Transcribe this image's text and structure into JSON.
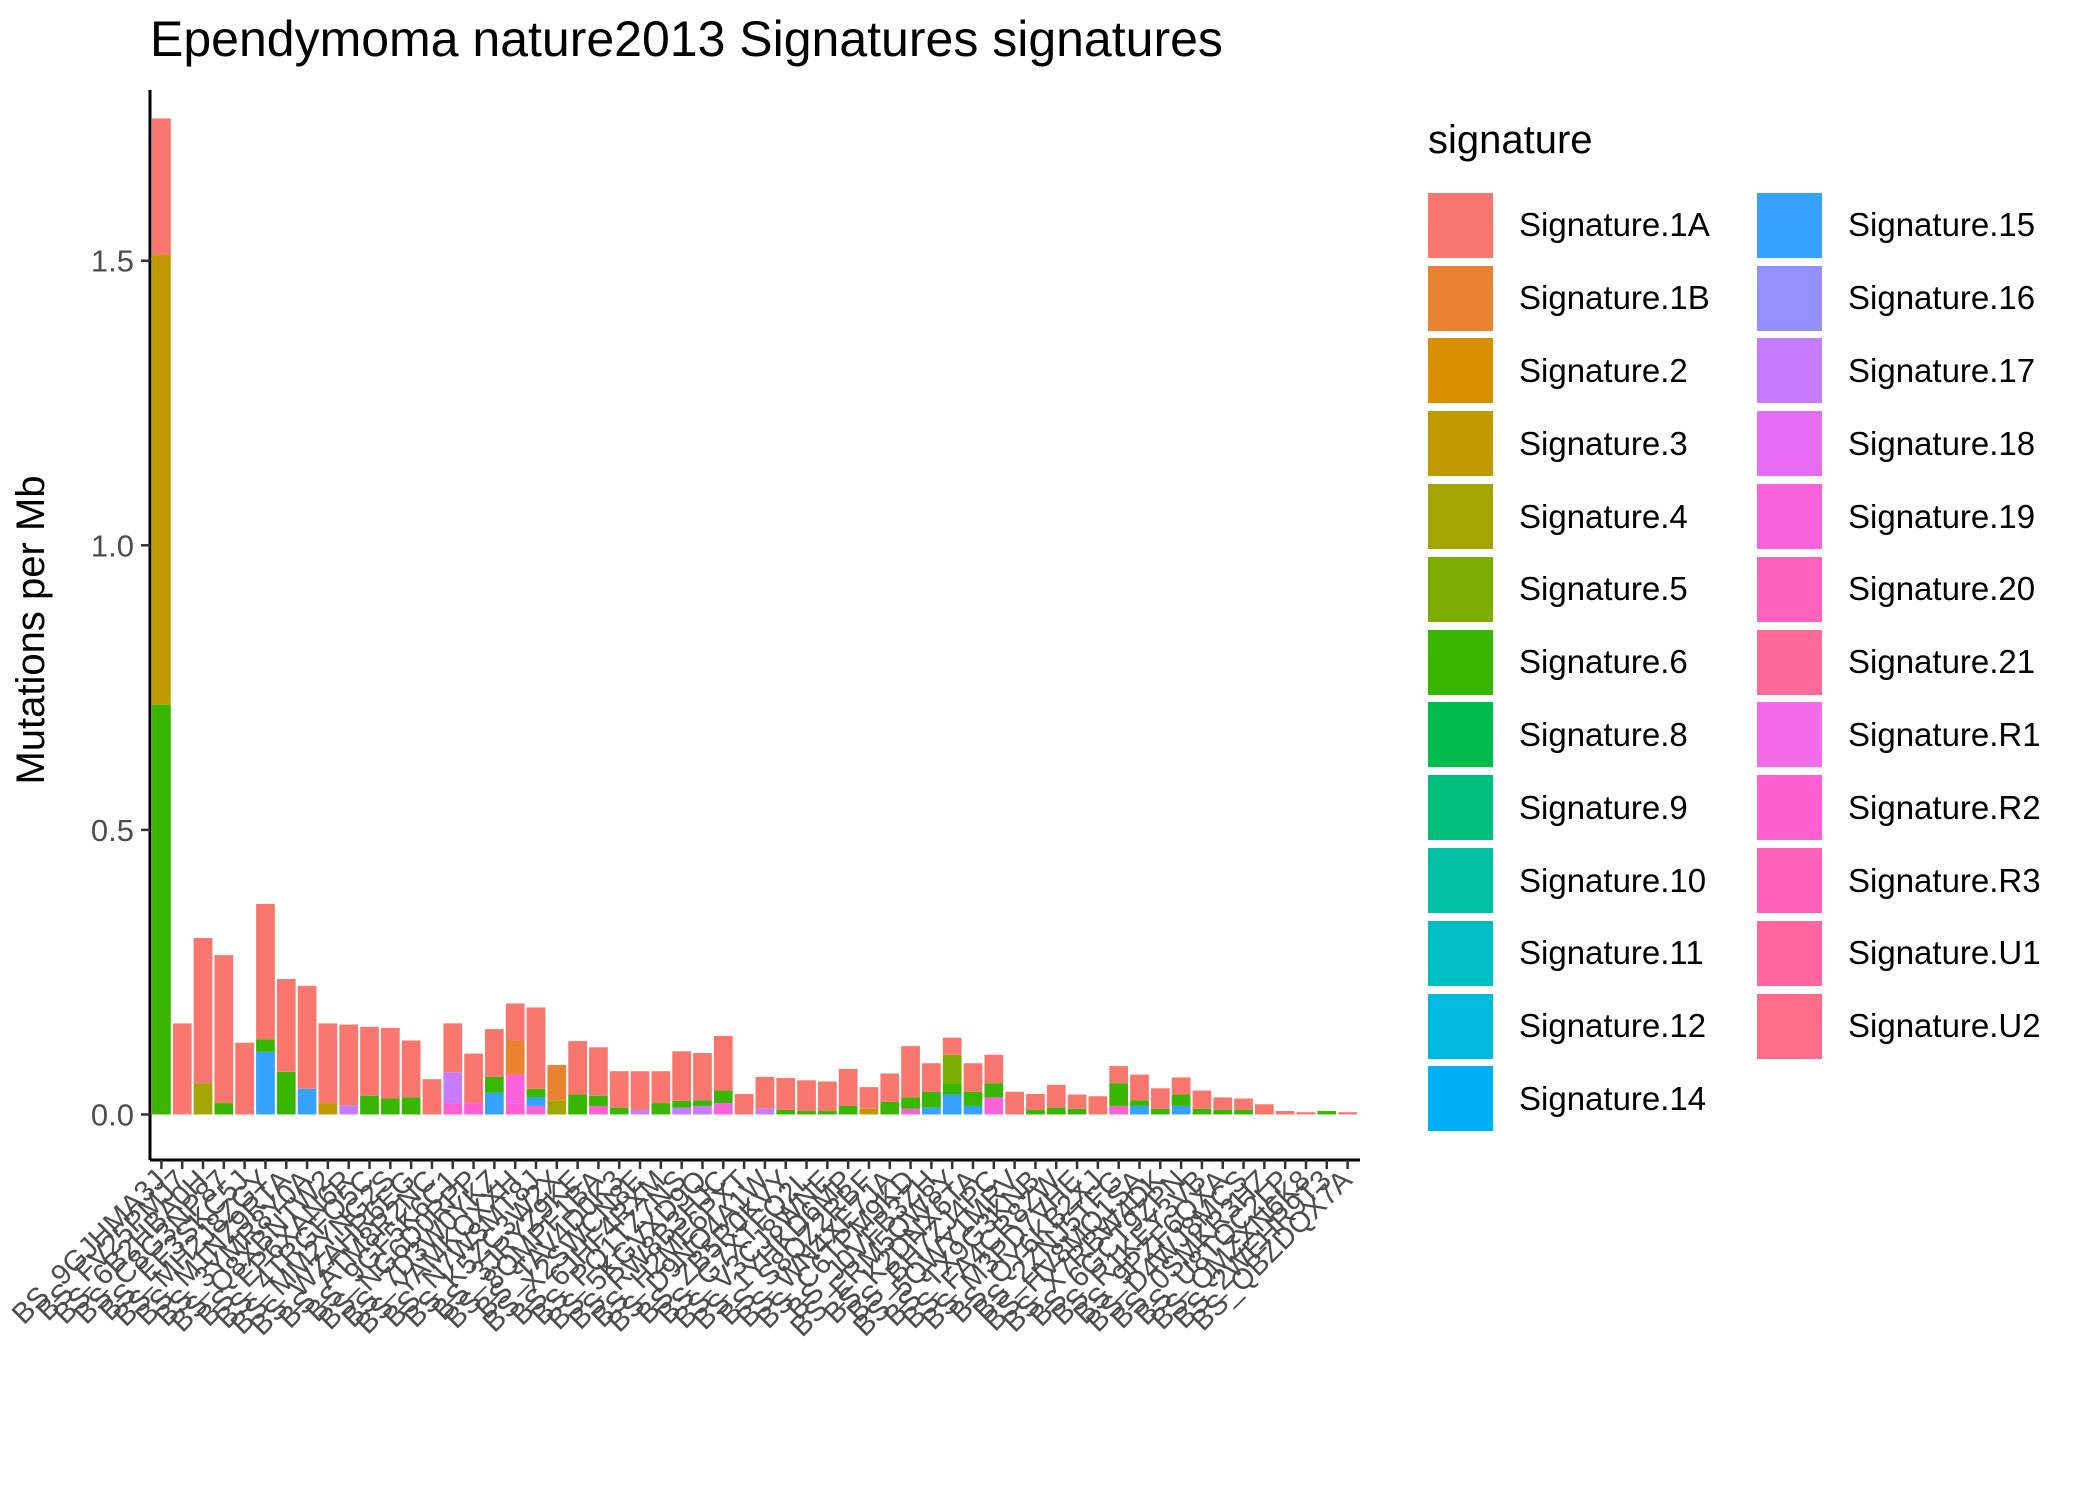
{
  "chart_data": {
    "type": "bar",
    "stacked": true,
    "title": "Ependymoma nature2013 Signatures signatures",
    "ylabel": "Mutations per Mb",
    "xlabel": "",
    "ylim": [
      -0.08,
      1.8
    ],
    "yticks": [
      0.0,
      0.5,
      1.0,
      1.5
    ],
    "ytick_labels": [
      "0.0",
      "0.5",
      "1.0",
      "1.5"
    ],
    "grid": false,
    "legend_title": "signature",
    "legend_position": "right",
    "signatures": [
      {
        "name": "Signature.1A",
        "color": "#F8766D"
      },
      {
        "name": "Signature.1B",
        "color": "#EA8331"
      },
      {
        "name": "Signature.2",
        "color": "#D89000"
      },
      {
        "name": "Signature.3",
        "color": "#C09B00"
      },
      {
        "name": "Signature.4",
        "color": "#A3A500"
      },
      {
        "name": "Signature.5",
        "color": "#7CAE00"
      },
      {
        "name": "Signature.6",
        "color": "#39B600"
      },
      {
        "name": "Signature.8",
        "color": "#00BB4E"
      },
      {
        "name": "Signature.9",
        "color": "#00BF7D"
      },
      {
        "name": "Signature.10",
        "color": "#00C1A3"
      },
      {
        "name": "Signature.11",
        "color": "#00BFC4"
      },
      {
        "name": "Signature.12",
        "color": "#00BAE0"
      },
      {
        "name": "Signature.14",
        "color": "#00B0F6"
      },
      {
        "name": "Signature.15",
        "color": "#35A2FF"
      },
      {
        "name": "Signature.16",
        "color": "#9590FF"
      },
      {
        "name": "Signature.17",
        "color": "#C77CFF"
      },
      {
        "name": "Signature.18",
        "color": "#E76BF3"
      },
      {
        "name": "Signature.19",
        "color": "#FA62DB"
      },
      {
        "name": "Signature.20",
        "color": "#FF62BC"
      },
      {
        "name": "Signature.21",
        "color": "#FF6A98"
      },
      {
        "name": "Signature.R1",
        "color": "#F36BE8"
      },
      {
        "name": "Signature.R2",
        "color": "#FF5FD0"
      },
      {
        "name": "Signature.R3",
        "color": "#FF61B8"
      },
      {
        "name": "Signature.U1",
        "color": "#FF659F"
      },
      {
        "name": "Signature.U2",
        "color": "#FF6C85"
      }
    ],
    "samples": [
      {
        "label": "BS_9GJHMA3J",
        "stack": [
          [
            "Signature.6",
            0.72
          ],
          [
            "Signature.3",
            0.79
          ],
          [
            "Signature.1A",
            0.24
          ]
        ]
      },
      {
        "label": "BS_FV25PMJ7",
        "stack": [
          [
            "Signature.1A",
            0.16
          ]
        ]
      },
      {
        "label": "BS_6B2HBA0H",
        "stack": [
          [
            "Signature.4",
            0.055
          ],
          [
            "Signature.1A",
            0.255
          ]
        ]
      },
      {
        "label": "BS_C8G3NP87",
        "stack": [
          [
            "Signature.6",
            0.02
          ],
          [
            "Signature.1A",
            0.26
          ]
        ]
      },
      {
        "label": "BS_EF3SKC5J",
        "stack": [
          [
            "Signature.1A",
            0.126
          ]
        ]
      },
      {
        "label": "BS_MH2J8ZGY",
        "stack": [
          [
            "Signature.15",
            0.11
          ],
          [
            "Signature.6",
            0.022
          ],
          [
            "Signature.1A",
            0.238
          ]
        ]
      },
      {
        "label": "BS_M1NZ9RTA",
        "stack": [
          [
            "Signature.6",
            0.075
          ],
          [
            "Signature.1A",
            0.163
          ]
        ]
      },
      {
        "label": "BS_3YMR8Y0A",
        "stack": [
          [
            "Signature.15",
            0.045
          ],
          [
            "Signature.1A",
            0.181
          ]
        ]
      },
      {
        "label": "BS_Q8XBNTW2",
        "stack": [
          [
            "Signature.3",
            0.02
          ],
          [
            "Signature.1A",
            0.14
          ]
        ]
      },
      {
        "label": "BS_EP6XAN6R",
        "stack": [
          [
            "Signature.17",
            0.016
          ],
          [
            "Signature.1A",
            0.142
          ]
        ]
      },
      {
        "label": "BS_4TRGFQ5C",
        "stack": [
          [
            "Signature.6",
            0.033
          ],
          [
            "Signature.1A",
            0.121
          ]
        ]
      },
      {
        "label": "BS_MM2YNG2S",
        "stack": [
          [
            "Signature.6",
            0.028
          ],
          [
            "Signature.1A",
            0.124
          ]
        ]
      },
      {
        "label": "BS_WZAHR6EG",
        "stack": [
          [
            "Signature.6",
            0.03
          ],
          [
            "Signature.1A",
            0.1
          ]
        ]
      },
      {
        "label": "BS_ATM8R2NC",
        "stack": [
          [
            "Signature.1A",
            0.062
          ]
        ]
      },
      {
        "label": "BS_9GF5K6C1",
        "stack": [
          [
            "Signature.R2",
            0.02
          ],
          [
            "Signature.17",
            0.054
          ],
          [
            "Signature.1A",
            0.086
          ]
        ]
      },
      {
        "label": "BS_NG6D0RPP",
        "stack": [
          [
            "Signature.R2",
            0.02
          ],
          [
            "Signature.1A",
            0.087
          ]
        ]
      },
      {
        "label": "BS_7D3W0YKZ",
        "stack": [
          [
            "Signature.15",
            0.038
          ],
          [
            "Signature.6",
            0.028
          ],
          [
            "Signature.1A",
            0.084
          ]
        ]
      },
      {
        "label": "BS_YAMKQXXH",
        "stack": [
          [
            "Signature.R2",
            0.02
          ],
          [
            "Signature.19",
            0.05
          ],
          [
            "Signature.1B",
            0.06
          ],
          [
            "Signature.1A",
            0.065
          ]
        ]
      },
      {
        "label": "BS_N7W3MT8J",
        "stack": [
          [
            "Signature.R2",
            0.015
          ],
          [
            "Signature.15",
            0.015
          ],
          [
            "Signature.6",
            0.015
          ],
          [
            "Signature.1A",
            0.143
          ]
        ]
      },
      {
        "label": "BS_K5ZC3W2X",
        "stack": [
          [
            "Signature.4",
            0.025
          ],
          [
            "Signature.1B",
            0.062
          ]
        ]
      },
      {
        "label": "BS_3JRYZ9KE",
        "stack": [
          [
            "Signature.6",
            0.035
          ],
          [
            "Signature.1A",
            0.094
          ]
        ]
      },
      {
        "label": "BS_8QMPF1BA",
        "stack": [
          [
            "Signature.R2",
            0.015
          ],
          [
            "Signature.6",
            0.018
          ],
          [
            "Signature.1A",
            0.085
          ]
        ]
      },
      {
        "label": "BS_TAV4D0K3",
        "stack": [
          [
            "Signature.6",
            0.012
          ],
          [
            "Signature.1A",
            0.064
          ]
        ]
      },
      {
        "label": "BS_X2SWCN8E",
        "stack": [
          [
            "Signature.17",
            0.008
          ],
          [
            "Signature.1A",
            0.068
          ]
        ]
      },
      {
        "label": "BS_6JHF4RXM",
        "stack": [
          [
            "Signature.6",
            0.02
          ],
          [
            "Signature.1A",
            0.056
          ]
        ]
      },
      {
        "label": "BS_PQ1TZ7NS",
        "stack": [
          [
            "Signature.17",
            0.012
          ],
          [
            "Signature.6",
            0.012
          ],
          [
            "Signature.1A",
            0.087
          ]
        ]
      },
      {
        "label": "BS_5KGVXD9Q",
        "stack": [
          [
            "Signature.17",
            0.015
          ],
          [
            "Signature.6",
            0.01
          ],
          [
            "Signature.1A",
            0.083
          ]
        ]
      },
      {
        "label": "BS_RW8B3HJC",
        "stack": [
          [
            "Signature.19",
            0.02
          ],
          [
            "Signature.6",
            0.022
          ],
          [
            "Signature.1A",
            0.096
          ]
        ]
      },
      {
        "label": "BS_H2ME6PXT",
        "stack": [
          [
            "Signature.1A",
            0.036
          ]
        ]
      },
      {
        "label": "BS_D9NQ4A1W",
        "stack": [
          [
            "Signature.17",
            0.01
          ],
          [
            "Signature.1A",
            0.056
          ]
        ]
      },
      {
        "label": "BS_ZB5R0KVY",
        "stack": [
          [
            "Signature.6",
            0.008
          ],
          [
            "Signature.1A",
            0.056
          ]
        ]
      },
      {
        "label": "BS_G7XTFQ2L",
        "stack": [
          [
            "Signature.6",
            0.006
          ],
          [
            "Signature.1A",
            0.054
          ]
        ]
      },
      {
        "label": "BS_V3CJ8WNE",
        "stack": [
          [
            "Signature.6",
            0.006
          ],
          [
            "Signature.1A",
            0.052
          ]
        ]
      },
      {
        "label": "BS_1YHKD6MP",
        "stack": [
          [
            "Signature.6",
            0.015
          ],
          [
            "Signature.1A",
            0.065
          ]
        ]
      },
      {
        "label": "BS_S8QZ2RBF",
        "stack": [
          [
            "Signature.3",
            0.01
          ],
          [
            "Signature.1A",
            0.038
          ]
        ]
      },
      {
        "label": "BS_WN4XE7JA",
        "stack": [
          [
            "Signature.6",
            0.022
          ],
          [
            "Signature.1A",
            0.05
          ]
        ]
      },
      {
        "label": "BS_C6TPM9KD",
        "stack": [
          [
            "Signature.R2",
            0.01
          ],
          [
            "Signature.6",
            0.02
          ],
          [
            "Signature.1A",
            0.09
          ]
        ]
      },
      {
        "label": "BS_J0VFB3ZH",
        "stack": [
          [
            "Signature.15",
            0.012
          ],
          [
            "Signature.6",
            0.028
          ],
          [
            "Signature.1A",
            0.05
          ]
        ]
      },
      {
        "label": "BS_ERM5QW8Y",
        "stack": [
          [
            "Signature.15",
            0.035
          ],
          [
            "Signature.6",
            0.02
          ],
          [
            "Signature.5",
            0.05
          ],
          [
            "Signature.1A",
            0.03
          ]
        ]
      },
      {
        "label": "BS_K2DNX6TA",
        "stack": [
          [
            "Signature.15",
            0.015
          ],
          [
            "Signature.6",
            0.025
          ],
          [
            "Signature.1A",
            0.05
          ]
        ]
      },
      {
        "label": "BS_BH7ZJ4PC",
        "stack": [
          [
            "Signature.19",
            0.03
          ],
          [
            "Signature.6",
            0.025
          ],
          [
            "Signature.1A",
            0.05
          ]
        ]
      },
      {
        "label": "BS_5QWY1MRV",
        "stack": [
          [
            "Signature.1A",
            0.04
          ]
        ]
      },
      {
        "label": "BS_TX9G3KNB",
        "stack": [
          [
            "Signature.6",
            0.008
          ],
          [
            "Signature.1A",
            0.028
          ]
        ]
      },
      {
        "label": "BS_FA4CR8ZW",
        "stack": [
          [
            "Signature.6",
            0.012
          ],
          [
            "Signature.1A",
            0.04
          ]
        ]
      },
      {
        "label": "BS_M3PD7VHE",
        "stack": [
          [
            "Signature.6",
            0.01
          ],
          [
            "Signature.1A",
            0.025
          ]
        ]
      },
      {
        "label": "BS_QY6KB2XJ",
        "stack": [
          [
            "Signature.1A",
            0.032
          ]
        ]
      },
      {
        "label": "BS_2ZNJ5TFG",
        "stack": [
          [
            "Signature.R2",
            0.015
          ],
          [
            "Signature.6",
            0.04
          ],
          [
            "Signature.1A",
            0.03
          ]
        ]
      },
      {
        "label": "BS_HV8MQ1SA",
        "stack": [
          [
            "Signature.15",
            0.015
          ],
          [
            "Signature.6",
            0.01
          ],
          [
            "Signature.1A",
            0.045
          ]
        ]
      },
      {
        "label": "BS_X7RBW4DK",
        "stack": [
          [
            "Signature.6",
            0.01
          ],
          [
            "Signature.1A",
            0.036
          ]
        ]
      },
      {
        "label": "BS_6GCT9ZPN",
        "stack": [
          [
            "Signature.15",
            0.015
          ],
          [
            "Signature.6",
            0.02
          ],
          [
            "Signature.1A",
            0.03
          ]
        ]
      },
      {
        "label": "BS_R1KEY3VB",
        "stack": [
          [
            "Signature.6",
            0.01
          ],
          [
            "Signature.1A",
            0.032
          ]
        ]
      },
      {
        "label": "BS_9PZF6QXA",
        "stack": [
          [
            "Signature.6",
            0.008
          ],
          [
            "Signature.1A",
            0.022
          ]
        ]
      },
      {
        "label": "BS_D4WJ8MCS",
        "stack": [
          [
            "Signature.6",
            0.008
          ],
          [
            "Signature.1A",
            0.02
          ]
        ]
      },
      {
        "label": "BS_0SMKR3HZ",
        "stack": [
          [
            "Signature.1A",
            0.018
          ]
        ]
      },
      {
        "label": "BS_U8TQC2LP",
        "stack": [
          [
            "Signature.1A",
            0.006
          ]
        ]
      },
      {
        "label": "BS_QMZXN6K8",
        "stack": [
          [
            "Signature.1A",
            0.004
          ]
        ]
      },
      {
        "label": "BS_2WEHR9T3",
        "stack": [
          [
            "Signature.6",
            0.006
          ]
        ]
      },
      {
        "label": "BS_QBZDQX7A",
        "stack": [
          [
            "Signature.1A",
            0.004
          ]
        ]
      }
    ]
  }
}
